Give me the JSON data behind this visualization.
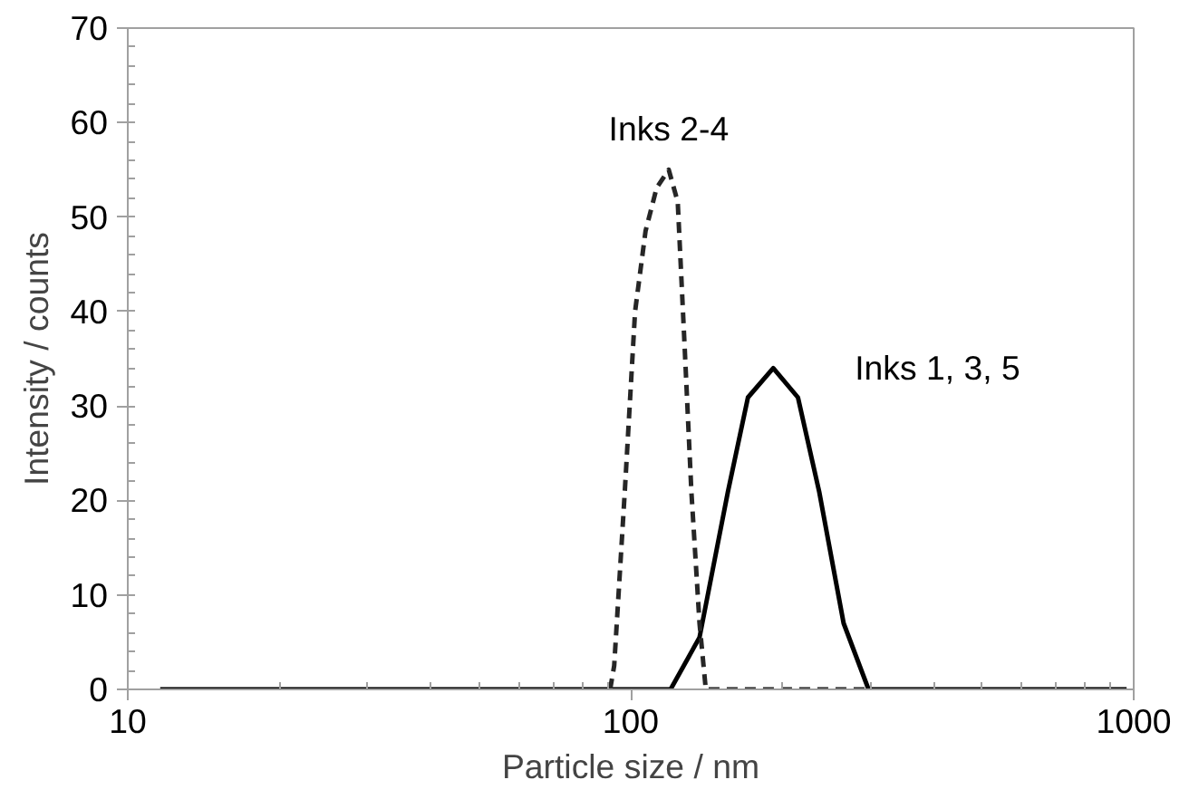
{
  "chart_data": {
    "type": "line",
    "xlabel": "Particle size / nm",
    "ylabel": "Intensity / counts",
    "log": "x",
    "xlim": [
      10,
      1000
    ],
    "xticks": [
      10,
      100,
      1000
    ],
    "ylim": [
      0,
      70
    ],
    "yticks": [
      0,
      10,
      20,
      30,
      40,
      50,
      60,
      70
    ],
    "grid": false,
    "marker": "none",
    "series": [
      {
        "name": "Inks 1, 3, 5",
        "color": "#000000",
        "line_style": "solid",
        "x": [
          11.6,
          120,
          137,
          156,
          171,
          192,
          215,
          237,
          265,
          297,
          968
        ],
        "values": [
          0,
          0,
          5.5,
          20.9,
          30.9,
          34,
          30.9,
          20.9,
          7,
          0,
          0
        ]
      },
      {
        "name": "Inks 2-4",
        "color": "#262626",
        "line_style": "dashed",
        "x": [
          91,
          92.7,
          97.3,
          102,
          107,
          112.6,
          119,
          124,
          128,
          132,
          137,
          141,
          297
        ],
        "values": [
          0,
          2.5,
          20.9,
          40,
          48.5,
          53.1,
          55,
          51.6,
          36.2,
          20.9,
          7,
          0,
          0
        ]
      }
    ]
  }
}
